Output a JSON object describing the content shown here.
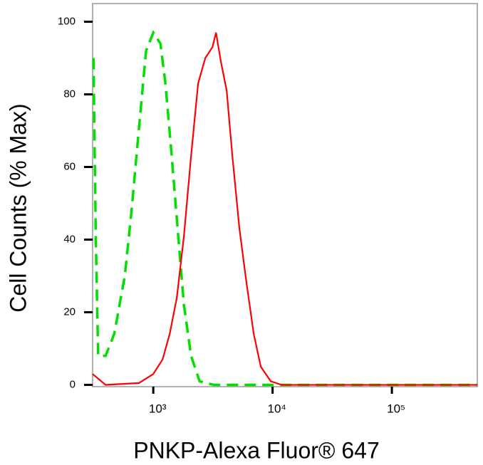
{
  "chart_data": {
    "type": "line",
    "xlabel": "PNKP-Alexa Fluor® 647",
    "ylabel": "Cell Counts (% Max)",
    "xscale": "log",
    "xlim": [
      310,
      520000
    ],
    "ylim": [
      -0.5,
      105
    ],
    "xticks": [
      {
        "value": 1000,
        "label": "10³"
      },
      {
        "value": 10000,
        "label": "10⁴"
      },
      {
        "value": 100000,
        "label": "10⁵"
      }
    ],
    "yticks": [
      0,
      20,
      40,
      60,
      80,
      100
    ],
    "series": [
      {
        "color": "#00e000",
        "dashed": true,
        "x": [
          315,
          330,
          345,
          398,
          470,
          577,
          662,
          760,
          871,
          1000,
          1148,
          1263,
          1410,
          1618,
          1806,
          2072,
          2444,
          3216,
          10000,
          520000
        ],
        "values": [
          90,
          40,
          8,
          8,
          14,
          30,
          49,
          71,
          92,
          97,
          94,
          83,
          65,
          41,
          22,
          8,
          1,
          0,
          0,
          0
        ]
      },
      {
        "color": "#ff0000",
        "dashed": false,
        "x": [
          310,
          398,
          760,
          1000,
          1196,
          1372,
          1574,
          1806,
          2072,
          2377,
          2728,
          3131,
          3353,
          3690,
          4121,
          4603,
          5276,
          6053,
          6950,
          7967,
          9661,
          11885,
          520000
        ],
        "values": [
          3,
          0,
          0.5,
          3,
          7,
          14,
          24,
          41,
          63,
          83,
          90,
          93,
          97,
          89,
          81,
          63,
          43,
          28,
          14,
          5,
          1,
          0,
          0
        ]
      }
    ]
  }
}
